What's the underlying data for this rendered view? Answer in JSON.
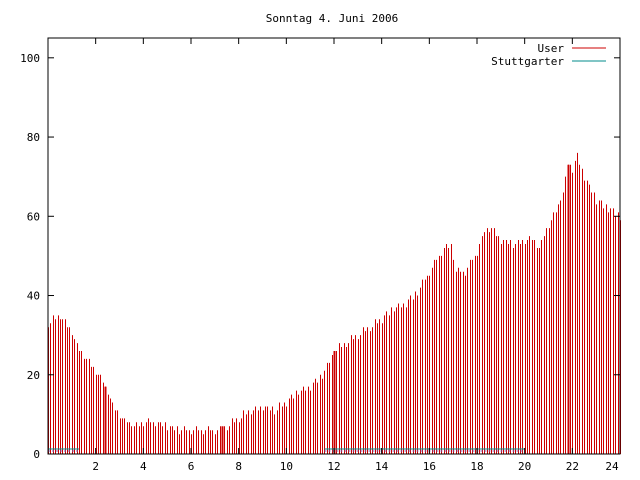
{
  "chart_data": {
    "type": "bar",
    "title": "Sonntag 4. Juni 2006",
    "xlabel": "",
    "ylabel": "",
    "xlim": [
      0,
      24
    ],
    "ylim": [
      0,
      105
    ],
    "xticks": [
      2,
      4,
      6,
      8,
      10,
      12,
      14,
      16,
      18,
      20,
      22,
      24
    ],
    "yticks": [
      0,
      20,
      40,
      60,
      80,
      100
    ],
    "grid": false,
    "legend_position": "top-right",
    "series": [
      {
        "name": "User",
        "color": "#cc0000",
        "curve": [
          [
            0.0,
            33
          ],
          [
            0.5,
            35
          ],
          [
            0.9,
            32
          ],
          [
            1.3,
            26
          ],
          [
            1.6,
            24
          ],
          [
            1.9,
            22
          ],
          [
            2.2,
            19
          ],
          [
            2.5,
            16
          ],
          [
            2.7,
            12
          ],
          [
            3.0,
            10
          ],
          [
            3.3,
            8
          ],
          [
            3.7,
            7
          ],
          [
            4.0,
            8
          ],
          [
            4.5,
            8
          ],
          [
            5.0,
            7
          ],
          [
            5.5,
            6
          ],
          [
            6.0,
            6
          ],
          [
            6.5,
            6
          ],
          [
            7.0,
            6
          ],
          [
            7.5,
            7
          ],
          [
            8.0,
            9
          ],
          [
            8.5,
            11
          ],
          [
            9.0,
            12
          ],
          [
            9.5,
            11
          ],
          [
            10.0,
            13
          ],
          [
            10.5,
            16
          ],
          [
            11.0,
            17
          ],
          [
            11.5,
            20
          ],
          [
            12.0,
            26
          ],
          [
            12.5,
            28
          ],
          [
            13.0,
            30
          ],
          [
            13.5,
            32
          ],
          [
            14.0,
            34
          ],
          [
            14.5,
            37
          ],
          [
            15.0,
            38
          ],
          [
            15.5,
            41
          ],
          [
            16.0,
            46
          ],
          [
            16.5,
            51
          ],
          [
            16.9,
            53
          ],
          [
            17.1,
            46
          ],
          [
            17.5,
            46
          ],
          [
            18.0,
            51
          ],
          [
            18.3,
            56
          ],
          [
            18.6,
            57
          ],
          [
            19.0,
            54
          ],
          [
            19.5,
            53
          ],
          [
            20.0,
            54
          ],
          [
            20.3,
            54
          ],
          [
            20.6,
            52
          ],
          [
            21.0,
            58
          ],
          [
            21.3,
            61
          ],
          [
            21.6,
            66
          ],
          [
            21.8,
            73
          ],
          [
            22.0,
            72
          ],
          [
            22.2,
            75
          ],
          [
            22.5,
            70
          ],
          [
            23.0,
            64
          ],
          [
            23.5,
            62
          ],
          [
            24.0,
            60
          ]
        ]
      },
      {
        "name": "Stuttgarter",
        "color": "#008b8b",
        "segments": [
          [
            0.0,
            1.3,
            1
          ],
          [
            11.6,
            20.0,
            1
          ]
        ]
      }
    ],
    "highlight_bars": [
      2.4,
      7.3,
      12.0,
      21.8
    ]
  }
}
